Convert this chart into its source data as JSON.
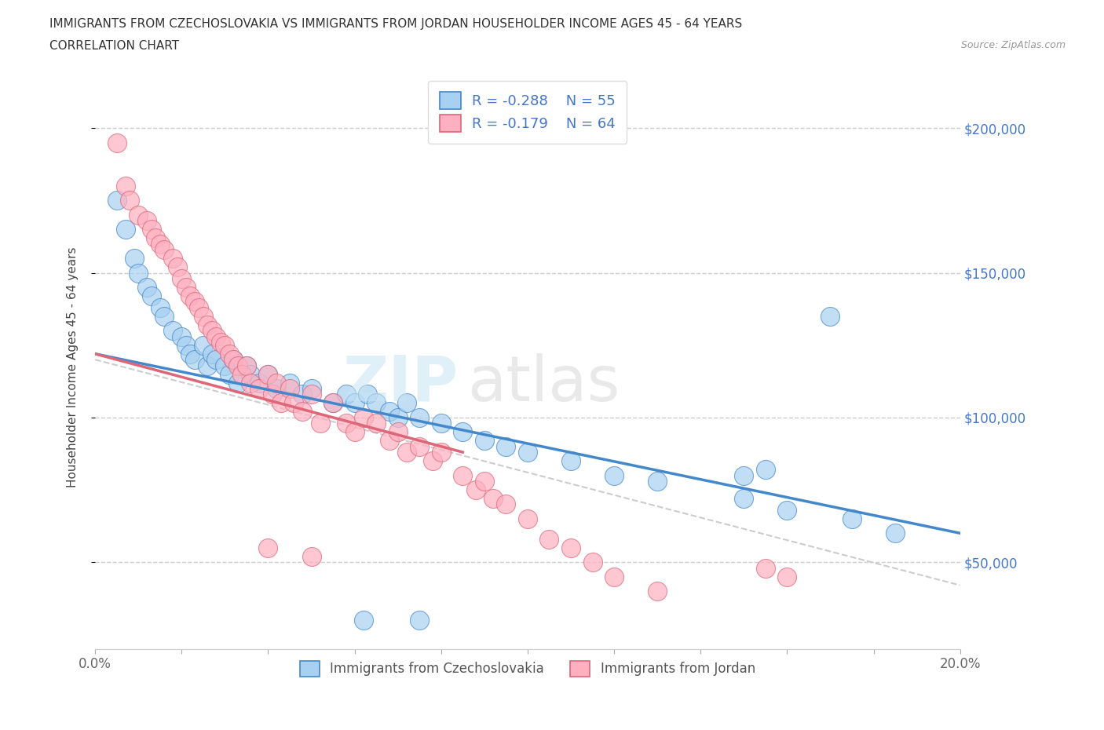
{
  "title_line1": "IMMIGRANTS FROM CZECHOSLOVAKIA VS IMMIGRANTS FROM JORDAN HOUSEHOLDER INCOME AGES 45 - 64 YEARS",
  "title_line2": "CORRELATION CHART",
  "source": "Source: ZipAtlas.com",
  "ylabel": "Householder Income Ages 45 - 64 years",
  "xlim": [
    0.0,
    0.2
  ],
  "ylim": [
    20000,
    215000
  ],
  "xticks": [
    0.0,
    0.02,
    0.04,
    0.06,
    0.08,
    0.1,
    0.12,
    0.14,
    0.16,
    0.18,
    0.2
  ],
  "xtick_labels": [
    "0.0%",
    "",
    "",
    "",
    "",
    "",
    "",
    "",
    "",
    "",
    "20.0%"
  ],
  "ytick_vals": [
    50000,
    100000,
    150000,
    200000
  ],
  "ytick_labels": [
    "$50,000",
    "$100,000",
    "$150,000",
    "$200,000"
  ],
  "R_czech": -0.288,
  "N_czech": 55,
  "R_jordan": -0.179,
  "N_jordan": 64,
  "color_czech": "#a8d0f0",
  "color_jordan": "#ffb0c0",
  "color_czech_line": "#4488cc",
  "color_jordan_line": "#dd6677",
  "color_dashed": "#cccccc",
  "legend_label_czech": "Immigrants from Czechoslovakia",
  "legend_label_jordan": "Immigrants from Jordan",
  "czech_x": [
    0.005,
    0.007,
    0.009,
    0.01,
    0.012,
    0.013,
    0.015,
    0.016,
    0.018,
    0.02,
    0.021,
    0.022,
    0.023,
    0.025,
    0.026,
    0.027,
    0.028,
    0.03,
    0.031,
    0.032,
    0.033,
    0.035,
    0.036,
    0.038,
    0.04,
    0.042,
    0.045,
    0.048,
    0.05,
    0.055,
    0.058,
    0.06,
    0.063,
    0.065,
    0.068,
    0.07,
    0.072,
    0.075,
    0.08,
    0.085,
    0.09,
    0.095,
    0.1,
    0.11,
    0.12,
    0.13,
    0.15,
    0.16,
    0.175,
    0.185,
    0.062,
    0.075,
    0.15,
    0.155,
    0.17
  ],
  "czech_y": [
    175000,
    165000,
    155000,
    150000,
    145000,
    142000,
    138000,
    135000,
    130000,
    128000,
    125000,
    122000,
    120000,
    125000,
    118000,
    122000,
    120000,
    118000,
    115000,
    120000,
    112000,
    118000,
    115000,
    112000,
    115000,
    110000,
    112000,
    108000,
    110000,
    105000,
    108000,
    105000,
    108000,
    105000,
    102000,
    100000,
    105000,
    100000,
    98000,
    95000,
    92000,
    90000,
    88000,
    85000,
    80000,
    78000,
    72000,
    68000,
    65000,
    60000,
    30000,
    30000,
    80000,
    82000,
    135000
  ],
  "jordan_x": [
    0.005,
    0.007,
    0.008,
    0.01,
    0.012,
    0.013,
    0.014,
    0.015,
    0.016,
    0.018,
    0.019,
    0.02,
    0.021,
    0.022,
    0.023,
    0.024,
    0.025,
    0.026,
    0.027,
    0.028,
    0.029,
    0.03,
    0.031,
    0.032,
    0.033,
    0.034,
    0.035,
    0.036,
    0.038,
    0.04,
    0.041,
    0.042,
    0.043,
    0.045,
    0.046,
    0.048,
    0.05,
    0.052,
    0.055,
    0.058,
    0.06,
    0.062,
    0.065,
    0.068,
    0.07,
    0.072,
    0.075,
    0.078,
    0.08,
    0.085,
    0.088,
    0.09,
    0.092,
    0.095,
    0.1,
    0.105,
    0.11,
    0.115,
    0.12,
    0.13,
    0.04,
    0.05,
    0.155,
    0.16
  ],
  "jordan_y": [
    195000,
    180000,
    175000,
    170000,
    168000,
    165000,
    162000,
    160000,
    158000,
    155000,
    152000,
    148000,
    145000,
    142000,
    140000,
    138000,
    135000,
    132000,
    130000,
    128000,
    126000,
    125000,
    122000,
    120000,
    118000,
    115000,
    118000,
    112000,
    110000,
    115000,
    108000,
    112000,
    105000,
    110000,
    105000,
    102000,
    108000,
    98000,
    105000,
    98000,
    95000,
    100000,
    98000,
    92000,
    95000,
    88000,
    90000,
    85000,
    88000,
    80000,
    75000,
    78000,
    72000,
    70000,
    65000,
    58000,
    55000,
    50000,
    45000,
    40000,
    55000,
    52000,
    48000,
    45000
  ],
  "czech_line_x0": 0.0,
  "czech_line_x1": 0.2,
  "czech_line_y0": 122000,
  "czech_line_y1": 60000,
  "jordan_line_x0": 0.0,
  "jordan_line_x1": 0.085,
  "jordan_line_y0": 122000,
  "jordan_line_y1": 88000,
  "dash_line_x0": 0.0,
  "dash_line_x1": 0.2,
  "dash_line_y0": 120000,
  "dash_line_y1": 42000
}
